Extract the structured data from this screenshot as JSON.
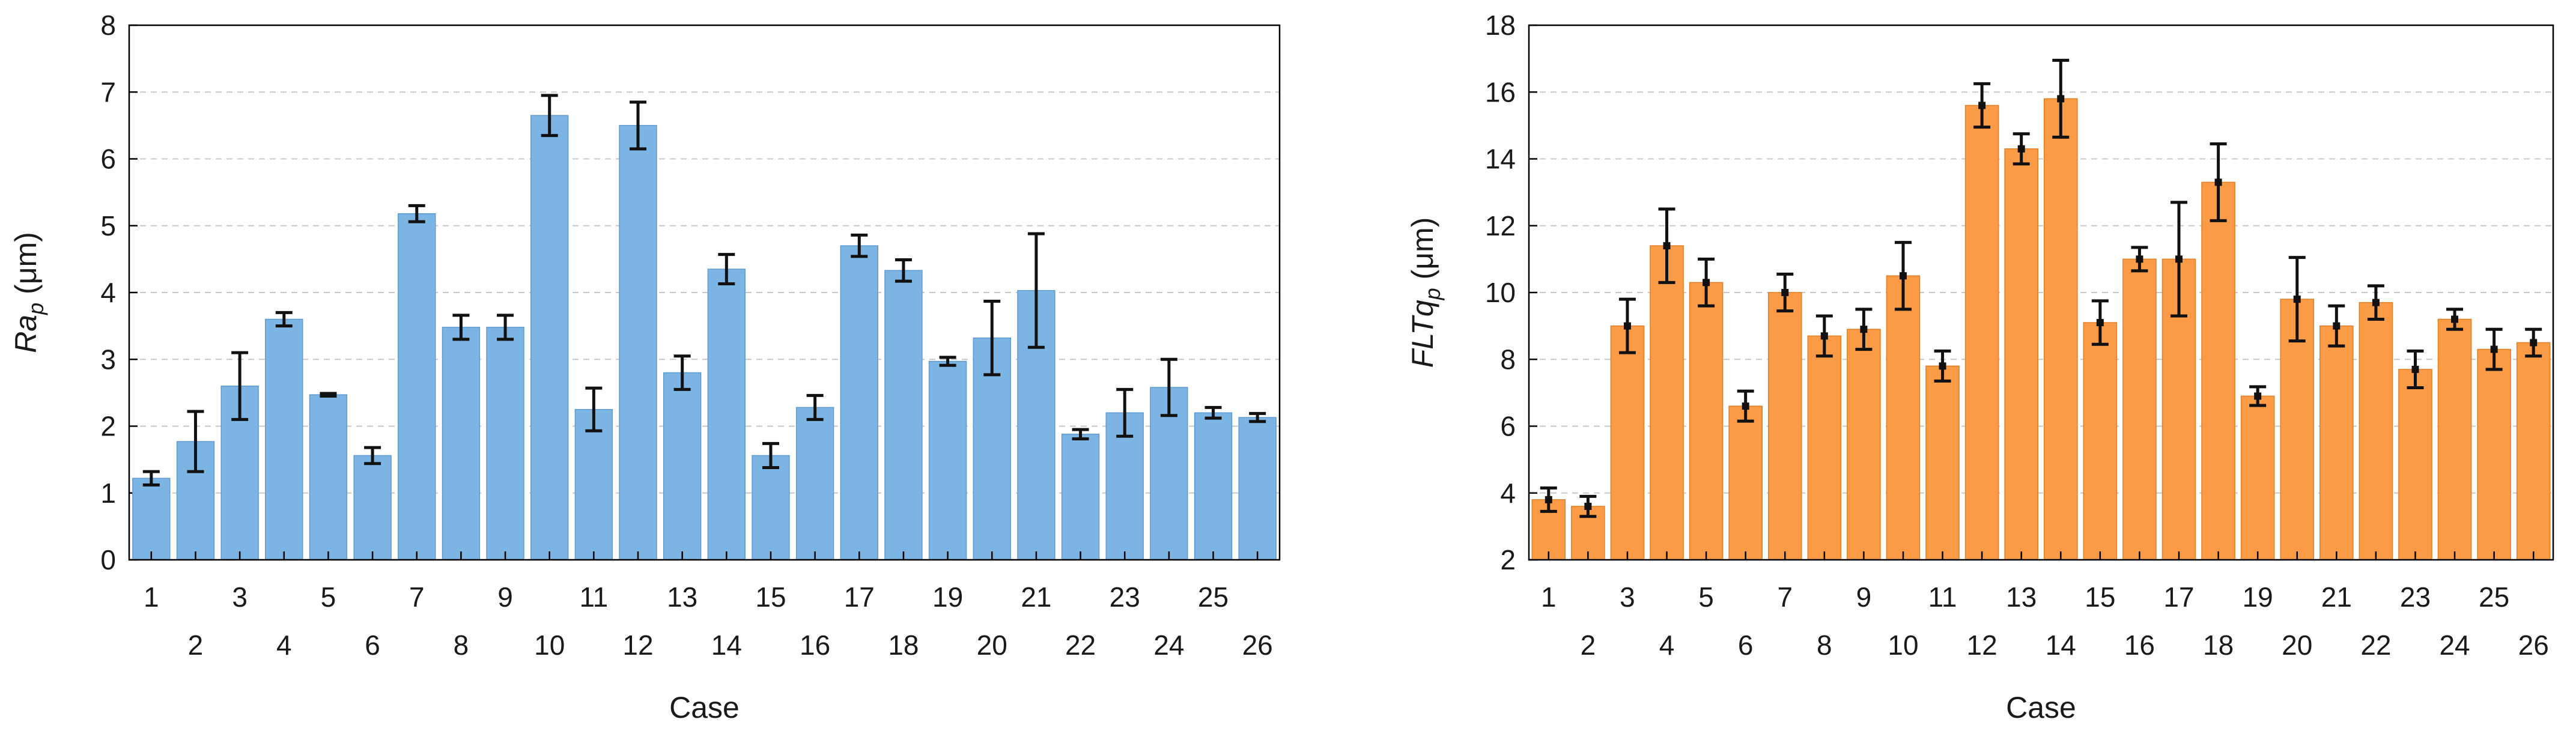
{
  "chart_data": [
    {
      "type": "bar",
      "ylabel_main": "Ra",
      "ylabel_sub": "p",
      "ylabel_unit": " (μm)",
      "xlabel": "Case",
      "ylim": [
        0,
        8
      ],
      "yticks": [
        0,
        1,
        2,
        3,
        4,
        5,
        6,
        7,
        8
      ],
      "bar_color": "#7cb4e3",
      "bar_edge": "#5f9bd0",
      "categories": [
        "1",
        "2",
        "3",
        "4",
        "5",
        "6",
        "7",
        "8",
        "9",
        "10",
        "11",
        "12",
        "13",
        "14",
        "15",
        "16",
        "17",
        "18",
        "19",
        "20",
        "21",
        "22",
        "23",
        "24",
        "25",
        "26"
      ],
      "values": [
        1.22,
        1.77,
        2.6,
        3.6,
        2.47,
        1.56,
        5.18,
        3.48,
        3.48,
        6.65,
        2.25,
        6.5,
        2.8,
        4.35,
        1.56,
        2.28,
        4.7,
        4.33,
        2.97,
        3.32,
        4.03,
        1.88,
        2.2,
        2.58,
        2.2,
        2.13
      ],
      "errors": [
        0.1,
        0.45,
        0.5,
        0.1,
        0.02,
        0.12,
        0.12,
        0.18,
        0.18,
        0.3,
        0.32,
        0.35,
        0.25,
        0.22,
        0.18,
        0.18,
        0.16,
        0.16,
        0.06,
        0.55,
        0.85,
        0.07,
        0.35,
        0.42,
        0.08,
        0.06
      ]
    },
    {
      "type": "bar",
      "ylabel_main": "FLTq",
      "ylabel_sub": "p",
      "ylabel_unit": " (μm)",
      "xlabel": "Case",
      "ylim": [
        2,
        18
      ],
      "yticks": [
        2,
        4,
        6,
        8,
        10,
        12,
        14,
        16,
        18
      ],
      "bar_color": "#fb9b45",
      "bar_edge": "#e07f26",
      "categories": [
        "1",
        "2",
        "3",
        "4",
        "5",
        "6",
        "7",
        "8",
        "9",
        "10",
        "11",
        "12",
        "13",
        "14",
        "15",
        "16",
        "17",
        "18",
        "19",
        "20",
        "21",
        "22",
        "23",
        "24",
        "25",
        "26"
      ],
      "values": [
        3.8,
        3.6,
        9.0,
        11.4,
        10.3,
        6.6,
        10.0,
        8.7,
        8.9,
        10.5,
        7.8,
        15.6,
        14.3,
        15.8,
        9.1,
        11.0,
        11.0,
        13.3,
        6.9,
        9.8,
        9.0,
        9.7,
        7.7,
        9.2,
        8.3,
        8.5
      ],
      "errors": [
        0.35,
        0.3,
        0.8,
        1.1,
        0.7,
        0.45,
        0.55,
        0.6,
        0.6,
        1.0,
        0.45,
        0.65,
        0.45,
        1.15,
        0.65,
        0.35,
        1.7,
        1.15,
        0.28,
        1.25,
        0.6,
        0.5,
        0.55,
        0.3,
        0.6,
        0.4
      ]
    }
  ]
}
